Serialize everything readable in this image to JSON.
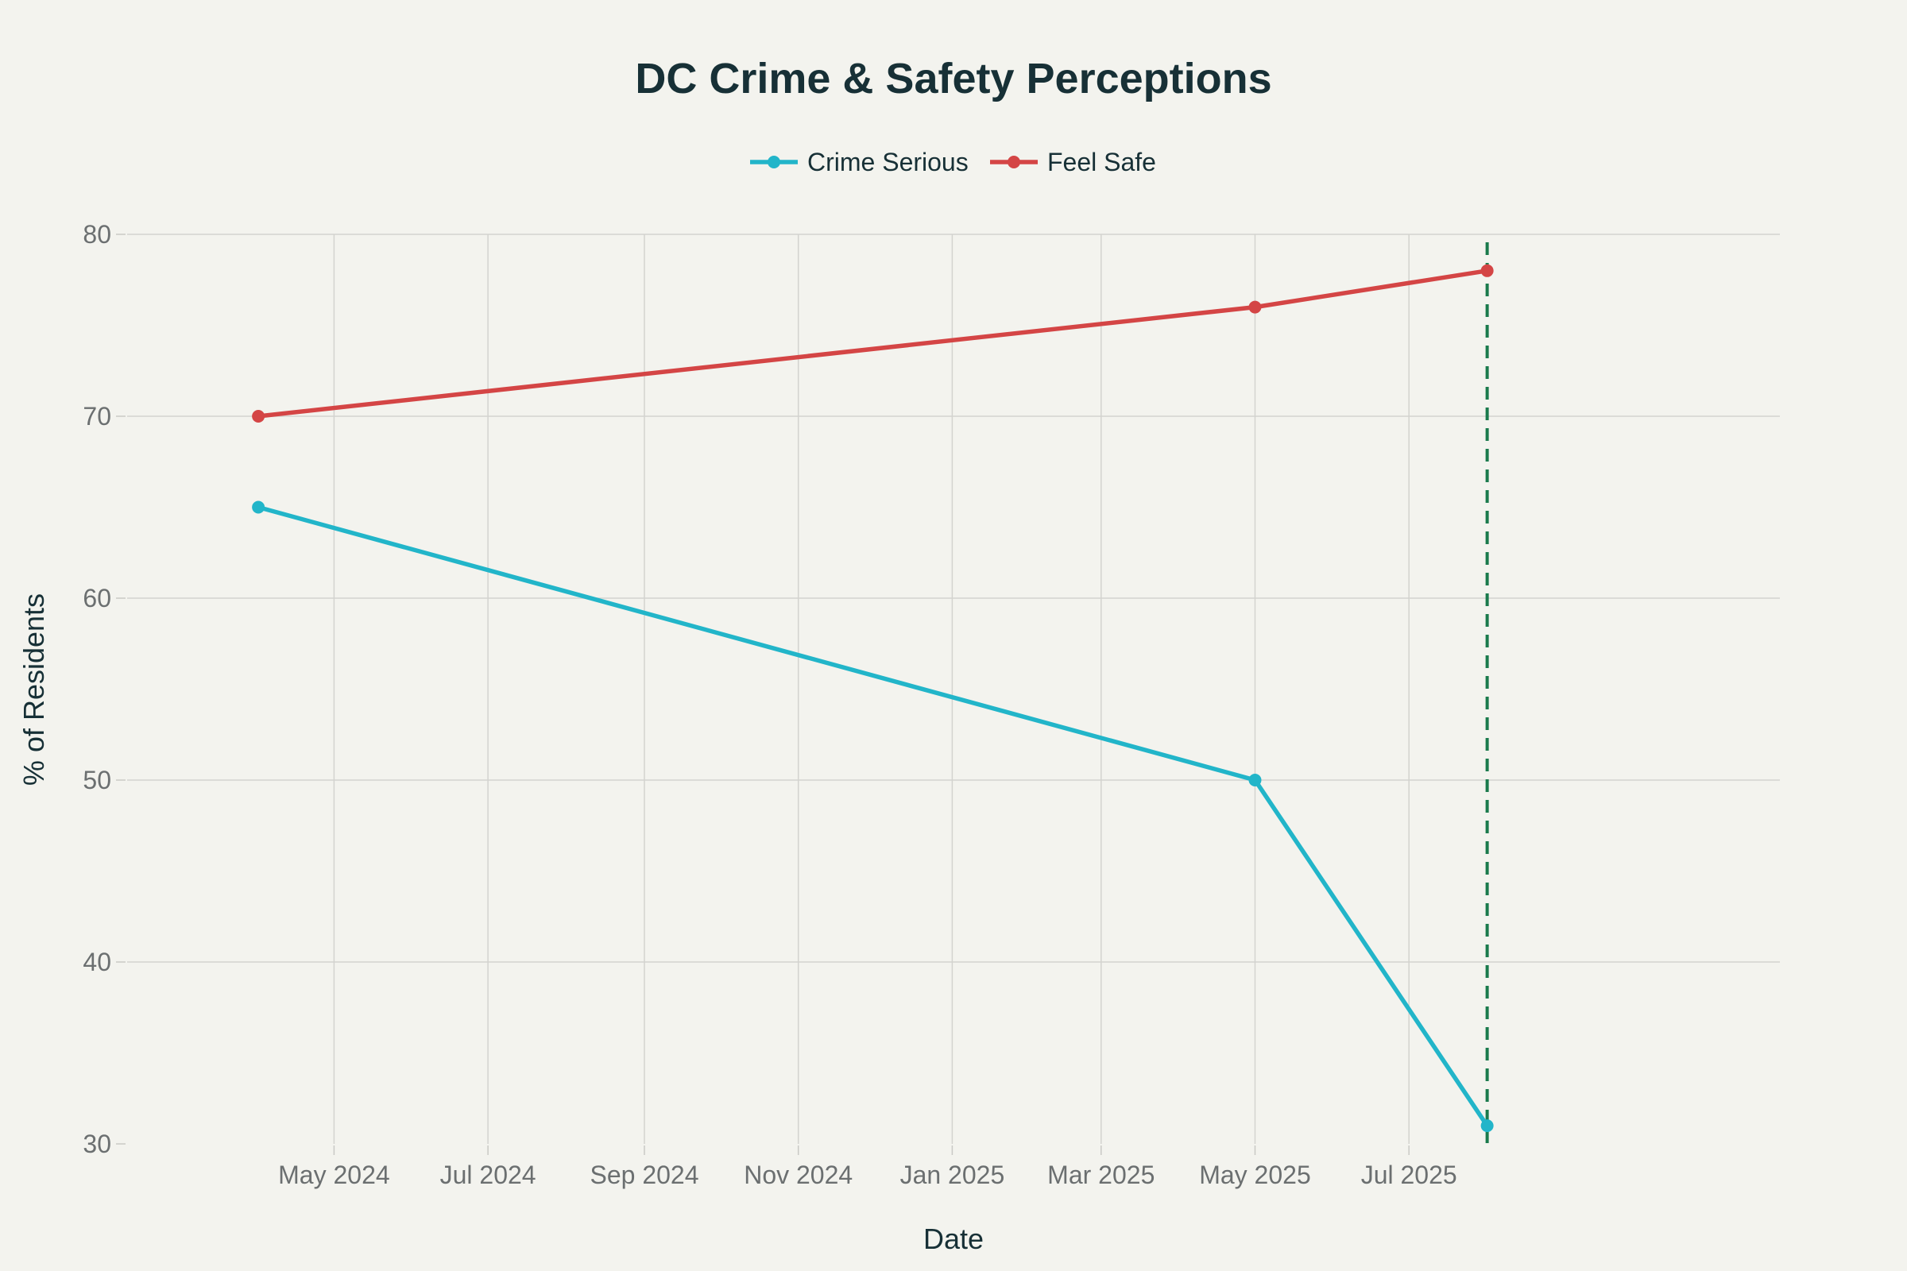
{
  "chart_data": {
    "type": "line",
    "title": "DC Crime & Safety Perceptions",
    "xlabel": "Date",
    "ylabel": "% of Residents",
    "x_axis_type": "date",
    "xlim": [
      "2024-02-09",
      "2025-11-25"
    ],
    "ylim": [
      30,
      80
    ],
    "yticks": [
      30,
      40,
      50,
      60,
      70,
      80
    ],
    "xticks": [
      {
        "date": "2024-05-01",
        "label": "May 2024"
      },
      {
        "date": "2024-07-01",
        "label": "Jul 2024"
      },
      {
        "date": "2024-09-01",
        "label": "Sep 2024"
      },
      {
        "date": "2024-11-01",
        "label": "Nov 2024"
      },
      {
        "date": "2025-01-01",
        "label": "Jan 2025"
      },
      {
        "date": "2025-03-01",
        "label": "Mar 2025"
      },
      {
        "date": "2025-05-01",
        "label": "May 2025"
      },
      {
        "date": "2025-07-01",
        "label": "Jul 2025"
      }
    ],
    "grid": true,
    "legend_position": "top-center",
    "series": [
      {
        "name": "Crime Serious",
        "color": "#22b5c9",
        "points": [
          {
            "x": "2024-04-01",
            "y": 65
          },
          {
            "x": "2025-05-01",
            "y": 50
          },
          {
            "x": "2025-08-01",
            "y": 31
          }
        ]
      },
      {
        "name": "Feel Safe",
        "color": "#d44545",
        "points": [
          {
            "x": "2024-04-01",
            "y": 70
          },
          {
            "x": "2025-05-01",
            "y": 76
          },
          {
            "x": "2025-08-01",
            "y": 78
          }
        ]
      }
    ],
    "reference_line": {
      "x": "2025-08-01",
      "color": "#1a7a4c",
      "style": "dashed"
    }
  }
}
